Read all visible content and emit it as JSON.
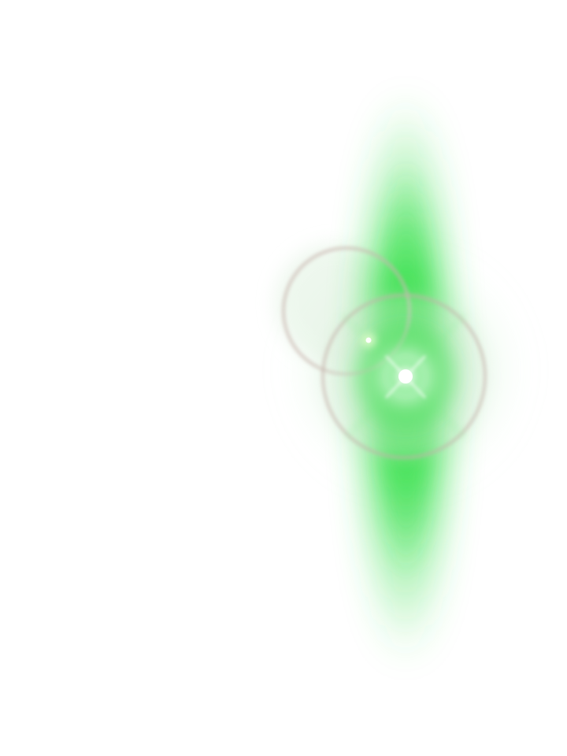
{
  "scene": {
    "background": "#ffffff",
    "subject": "lens-flare",
    "colors": {
      "glow": "#35e04a",
      "glow_soft": "#7ef08a",
      "core": "#ffffff",
      "ring": "#c9b7b0",
      "ring_soft": "#dfe9dd"
    }
  }
}
